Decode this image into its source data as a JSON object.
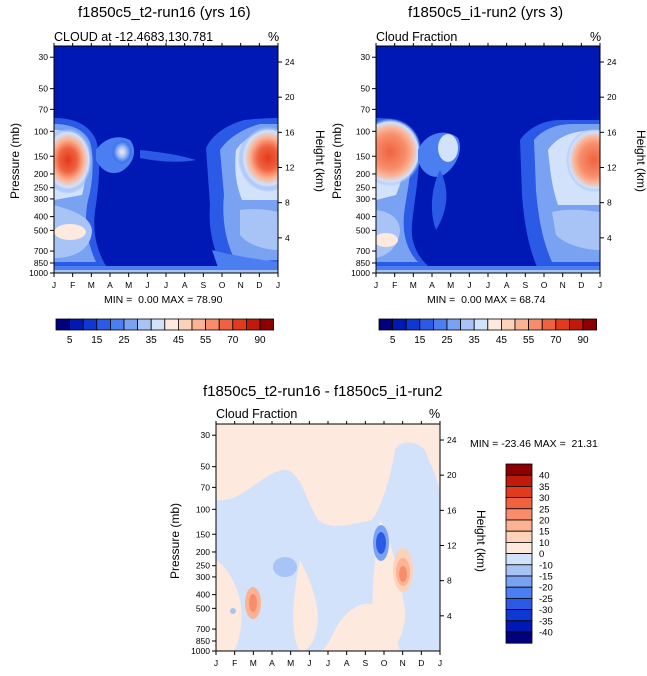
{
  "palette": [
    "#00007d",
    "#0019b4",
    "#0f37d2",
    "#2a5ae6",
    "#4b7ef0",
    "#7aa2f3",
    "#a8c4f6",
    "#d2e2fa",
    "#fde9dd",
    "#fdd2bb",
    "#fcb293",
    "#f78d6b",
    "#f0623f",
    "#e23a1c",
    "#bf1a0a",
    "#8c0000"
  ],
  "chart_data": [
    {
      "id": "top-left",
      "type": "heatmap",
      "title": "f1850c5_t2-run16 (yrs 16)",
      "subtitle": "CLOUD at -12.4683,130.781",
      "units": "%",
      "xlabel": "",
      "x_ticks": [
        "J",
        "F",
        "M",
        "A",
        "M",
        "J",
        "J",
        "A",
        "S",
        "O",
        "N",
        "D",
        "J"
      ],
      "ylabel": "Pressure (mb)",
      "y_ticks": [
        "30",
        "50",
        "70",
        "100",
        "150",
        "200",
        "250",
        "300",
        "400",
        "500",
        "700",
        "850",
        "1000"
      ],
      "ylabel_right": "Height (km)",
      "y_ticks_right": [
        "24",
        "20",
        "16",
        "12",
        "8",
        "4"
      ],
      "stats": "MIN =  0.00 MAX = 78.90",
      "colorbar_labels": [
        "5",
        "15",
        "25",
        "35",
        "45",
        "55",
        "70",
        "90"
      ]
    },
    {
      "id": "top-right",
      "type": "heatmap",
      "title": "f1850c5_i1-run2 (yrs 3)",
      "subtitle": "Cloud Fraction",
      "units": "%",
      "xlabel": "",
      "x_ticks": [
        "J",
        "F",
        "M",
        "A",
        "M",
        "J",
        "J",
        "A",
        "S",
        "O",
        "N",
        "D",
        "J"
      ],
      "ylabel": "Pressure (mb)",
      "y_ticks": [
        "30",
        "50",
        "70",
        "100",
        "150",
        "200",
        "250",
        "300",
        "400",
        "500",
        "700",
        "850",
        "1000"
      ],
      "ylabel_right": "Height (km)",
      "y_ticks_right": [
        "24",
        "20",
        "16",
        "12",
        "8",
        "4"
      ],
      "stats": "MIN =  0.00 MAX = 68.74",
      "colorbar_labels": [
        "5",
        "15",
        "25",
        "35",
        "45",
        "55",
        "70",
        "90"
      ]
    },
    {
      "id": "bottom",
      "type": "heatmap",
      "title": "f1850c5_t2-run16 - f1850c5_i1-run2",
      "subtitle": "Cloud Fraction",
      "units": "%",
      "x_ticks": [
        "J",
        "F",
        "M",
        "A",
        "M",
        "J",
        "J",
        "A",
        "S",
        "O",
        "N",
        "D",
        "J"
      ],
      "ylabel": "Pressure (mb)",
      "y_ticks": [
        "30",
        "50",
        "70",
        "100",
        "150",
        "200",
        "250",
        "300",
        "400",
        "500",
        "700",
        "850",
        "1000"
      ],
      "ylabel_right": "Height (km)",
      "y_ticks_right": [
        "24",
        "20",
        "16",
        "12",
        "8",
        "4"
      ],
      "stats": "MIN = -23.46 MAX =  21.31",
      "colorbar_labels": [
        "40",
        "35",
        "30",
        "25",
        "20",
        "15",
        "10",
        "0",
        "-10",
        "-15",
        "-20",
        "-25",
        "-30",
        "-35",
        "-40"
      ]
    }
  ]
}
